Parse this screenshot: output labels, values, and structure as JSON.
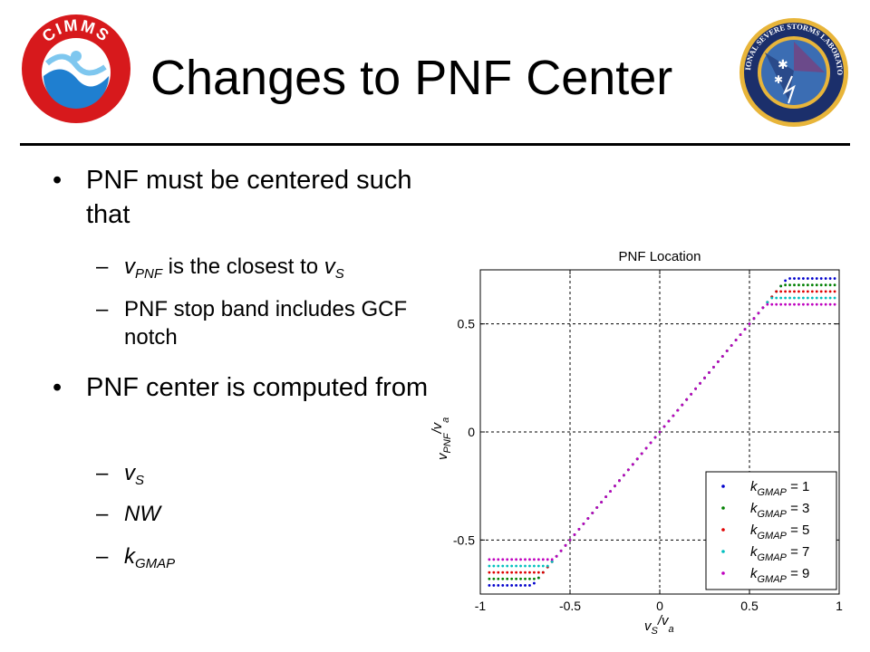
{
  "slide": {
    "title": "Changes to PNF Center",
    "bullets": [
      {
        "text": "PNF must be centered such that"
      },
      {
        "text": "PNF center is computed from"
      }
    ],
    "sub1": {
      "v": "v",
      "v_sub": "PNF",
      "text": "is the closest to",
      "v2": "v",
      "v2_sub": "S"
    },
    "sub2": {
      "text": "PNF stop band includes GCF notch"
    },
    "sub3": {
      "v": "v",
      "v_sub": "S"
    },
    "sub4": {
      "text": "NW"
    },
    "sub5": {
      "k": "k",
      "k_sub": "GMAP"
    }
  },
  "logos": {
    "left_text": "CIMMS",
    "right_text": "NATIONAL SEVERE STORMS LABORATORY",
    "right_small": "U.S. DEPARTMENT OF COMMERCE · NATIONAL OCEANIC and ATMOSPHERIC ADMINISTRATION"
  },
  "chart_data": {
    "type": "scatter",
    "title": "PNF Location",
    "xlabel": {
      "main": "v",
      "sub": "S",
      "slash": "/v",
      "sub2": "a"
    },
    "ylabel": {
      "main": "v",
      "sub": "PNF",
      "slash": "/v",
      "sub2": "a"
    },
    "xlim": [
      -1,
      1
    ],
    "ylim": [
      -0.75,
      0.75
    ],
    "xticks": [
      -1,
      -0.5,
      0,
      0.5,
      1
    ],
    "xtick_labels": [
      "-1",
      "-0.5",
      "0",
      "0.5",
      "1"
    ],
    "yticks": [
      -0.5,
      0,
      0.5
    ],
    "ytick_labels": [
      "-0.5",
      "0",
      "0.5"
    ],
    "grid": true,
    "legend_position": "bottom-right",
    "series": [
      {
        "name_k": "k",
        "name_sub": "GMAP",
        "name_val": " = 1",
        "k": 1,
        "color": "#0000cc",
        "clamp": 0.71
      },
      {
        "name_k": "k",
        "name_sub": "GMAP",
        "name_val": " = 3",
        "k": 3,
        "color": "#008000",
        "clamp": 0.68
      },
      {
        "name_k": "k",
        "name_sub": "GMAP",
        "name_val": " = 5",
        "k": 5,
        "color": "#e00000",
        "clamp": 0.65
      },
      {
        "name_k": "k",
        "name_sub": "GMAP",
        "name_val": " = 7",
        "k": 7,
        "color": "#00bfbf",
        "clamp": 0.62
      },
      {
        "name_k": "k",
        "name_sub": "GMAP",
        "name_val": " = 9",
        "k": 9,
        "color": "#bf00bf",
        "clamp": 0.59
      }
    ],
    "x_step": 0.025,
    "relation": "y = clip(x, -clamp, clamp)"
  },
  "colors": {
    "accent_red": "#d7191c",
    "noaa_blue": "#1f7fd0",
    "nssl_navy": "#1b2f6b"
  }
}
